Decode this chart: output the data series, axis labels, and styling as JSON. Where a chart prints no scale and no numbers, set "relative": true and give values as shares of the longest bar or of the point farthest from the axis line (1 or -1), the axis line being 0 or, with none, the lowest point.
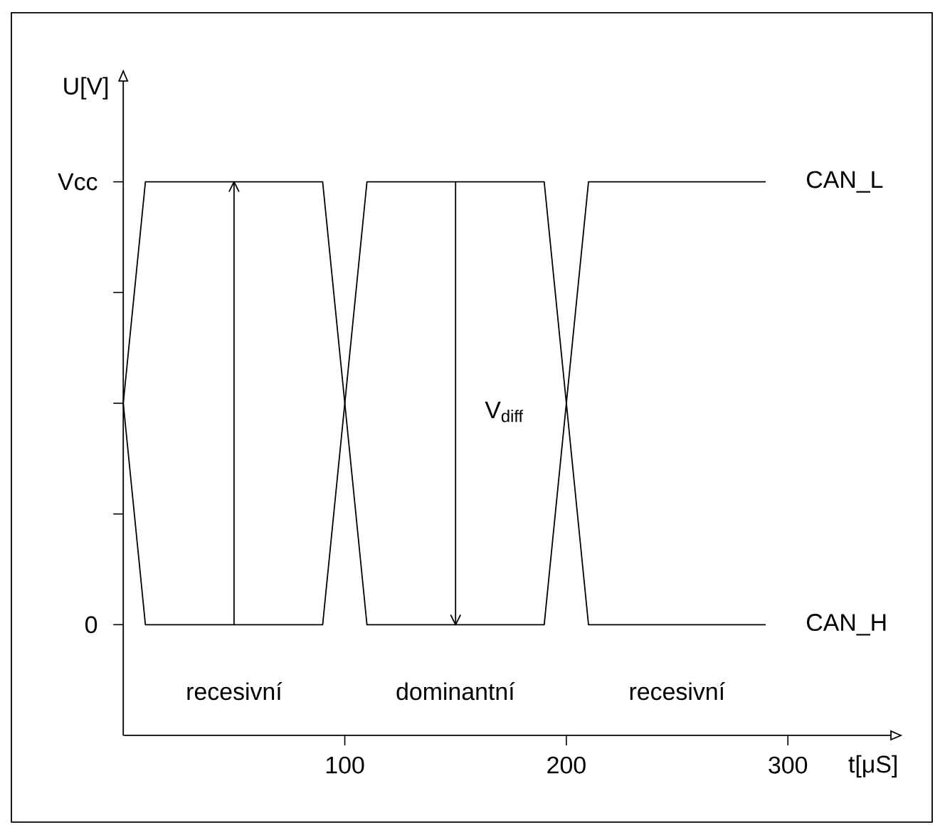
{
  "chart_data": {
    "type": "line",
    "xlabel": "t[μS]",
    "ylabel": "U[V]",
    "xlim": [
      0,
      351
    ],
    "relative": true,
    "xticks": [
      100,
      200,
      300
    ],
    "line_style": "solid",
    "marker": "none",
    "series": [
      {
        "name": "CAN_L",
        "color": "#000000",
        "x": [
          0,
          10,
          90,
          110,
          190,
          210,
          290
        ],
        "values": [
          0.6,
          1,
          1,
          0.2,
          0.2,
          1,
          1
        ]
      },
      {
        "name": "CAN_H",
        "color": "#000000",
        "x": [
          0,
          10,
          90,
          110,
          190,
          210,
          290
        ],
        "values": [
          0.6,
          0.2,
          0.2,
          1,
          1,
          0.2,
          0.2
        ]
      },
      {
        "color": "#000000",
        "x": [
          50,
          50
        ],
        "values": [
          0.2,
          1
        ]
      },
      {
        "color": "#000000",
        "x": [
          150,
          150
        ],
        "values": [
          1,
          0.2
        ]
      }
    ],
    "annotations": [
      "Vcc",
      "0",
      "recesivní",
      "dominantní",
      "recesivní",
      "V$_{diff}$"
    ]
  }
}
